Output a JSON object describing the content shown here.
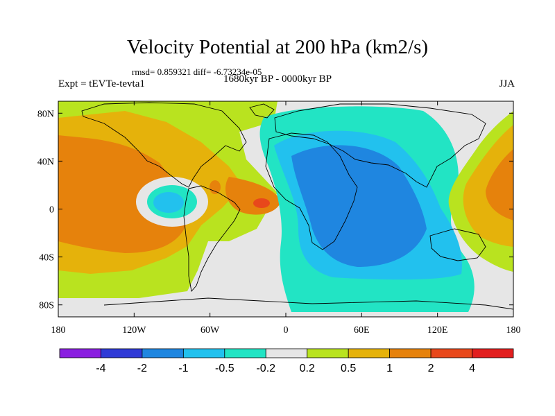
{
  "title": "Velocity Potential at 200 hPa (km2/s)",
  "stats": "rmsd= 0.859321 diff= -6.73234e-05",
  "expt": "Expt = tEVTe-tevta1",
  "period": "1680kyr BP - 0000kyr BP",
  "season": "JJA",
  "map": {
    "lon_range": [
      -180,
      180
    ],
    "lat_range": [
      -90,
      90
    ],
    "x_ticks": [
      "180",
      "120W",
      "60W",
      "0",
      "60E",
      "120E",
      "180"
    ],
    "y_ticks": [
      "80N",
      "40N",
      "0",
      "40S",
      "80S"
    ],
    "background_color": "#e6e6e6"
  },
  "colorbar": {
    "labels": [
      "-4",
      "-2",
      "-1",
      "-0.5",
      "-0.2",
      "0.2",
      "0.5",
      "1",
      "2",
      "4"
    ],
    "colors": [
      "#8a1ee0",
      "#2f3ad6",
      "#1f86e0",
      "#22c1ee",
      "#22e4c4",
      "#e6e6e6",
      "#b9e31f",
      "#e5b20b",
      "#e6820c",
      "#e8481b",
      "#e21f1f"
    ]
  }
}
